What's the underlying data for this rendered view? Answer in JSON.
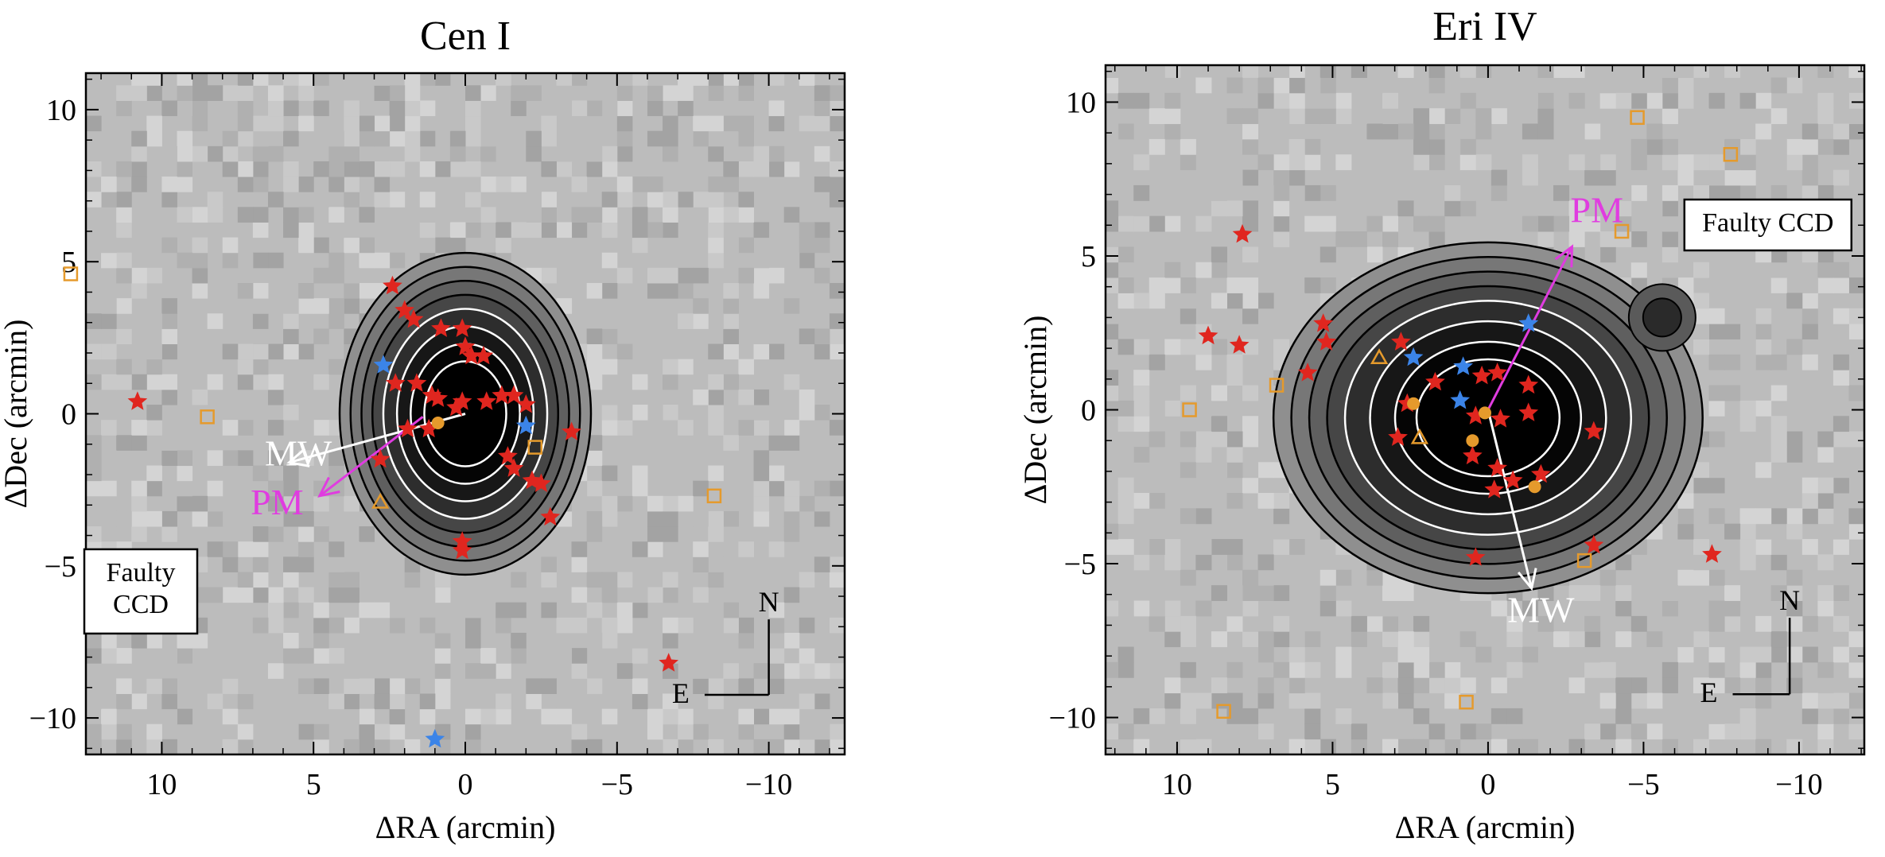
{
  "colors": {
    "red_star": "#e0261f",
    "blue_star": "#3b84e8",
    "orange_marker": "#e59a2c",
    "pm_arrow": "#e03ce0",
    "mw_arrow": "#ffffff",
    "bg_gray": "#bcbcbc"
  },
  "chart_data": [
    {
      "type": "scatter",
      "title": "Cen I",
      "xlabel": "ΔRA (arcmin)",
      "ylabel": "ΔDec (arcmin)",
      "xlim": [
        12.5,
        -12.5
      ],
      "ylim": [
        -11.2,
        11.2
      ],
      "xticks": [
        10,
        5,
        0,
        -5,
        -10
      ],
      "xtick_labels": [
        "10",
        "5",
        "0",
        "−5",
        "−10"
      ],
      "yticks": [
        10,
        5,
        0,
        -5,
        -10
      ],
      "ytick_labels": [
        "10",
        "5",
        "0",
        "−5",
        "−10"
      ],
      "grid": false,
      "background": "density map (grayscale) with black and white contours",
      "overdensity_center": [
        0,
        0
      ],
      "contour_radii": [
        4.6,
        4.2,
        3.8,
        3.4,
        3.0,
        2.5,
        2.0,
        1.5
      ],
      "annotations": [
        {
          "text": "MW",
          "x": 5.5,
          "y": -1.7,
          "color": "#ffffff"
        },
        {
          "text": "PM",
          "x": 6.2,
          "y": -3.3,
          "color": "#e03ce0"
        },
        {
          "text": "Faulty\nCCD",
          "x": 11.8,
          "y": -5.5,
          "boxed": true
        },
        {
          "text": "N",
          "x": -10.0,
          "y": -6.5
        },
        {
          "text": "E",
          "x": -7.1,
          "y": -9.5
        }
      ],
      "vectors": [
        {
          "name": "MW",
          "from": [
            0,
            0
          ],
          "to": [
            5.8,
            -1.6
          ],
          "color": "#ffffff"
        },
        {
          "name": "PM",
          "from": [
            1.4,
            -0.1
          ],
          "to": [
            4.8,
            -2.7
          ],
          "color": "#e03ce0"
        }
      ],
      "compass": {
        "label_north": "N",
        "label_east": "E"
      },
      "series": [
        {
          "marker": "star",
          "color": "#e0261f",
          "points": [
            [
              2.4,
              4.2
            ],
            [
              2.0,
              3.4
            ],
            [
              1.7,
              3.1
            ],
            [
              0.8,
              2.8
            ],
            [
              0.1,
              2.8
            ],
            [
              0.0,
              2.2
            ],
            [
              -0.2,
              1.9
            ],
            [
              -0.6,
              1.9
            ],
            [
              2.3,
              1.0
            ],
            [
              1.6,
              1.0
            ],
            [
              1.1,
              0.6
            ],
            [
              0.9,
              0.5
            ],
            [
              0.3,
              0.2
            ],
            [
              0.1,
              0.4
            ],
            [
              -0.7,
              0.4
            ],
            [
              -1.2,
              0.6
            ],
            [
              -1.6,
              0.6
            ],
            [
              -2.0,
              0.3
            ],
            [
              1.2,
              -0.5
            ],
            [
              1.9,
              -0.5
            ],
            [
              2.8,
              -1.5
            ],
            [
              -1.4,
              -1.4
            ],
            [
              -1.6,
              -1.8
            ],
            [
              -2.2,
              -2.2
            ],
            [
              -2.5,
              -2.3
            ],
            [
              -2.8,
              -3.4
            ],
            [
              0.1,
              -4.2
            ],
            [
              0.1,
              -4.5
            ],
            [
              -3.5,
              -0.6
            ],
            [
              10.8,
              0.4
            ],
            [
              -6.7,
              -8.2
            ]
          ]
        },
        {
          "marker": "star",
          "color": "#3b84e8",
          "points": [
            [
              2.7,
              1.6
            ],
            [
              -2.0,
              -0.4
            ],
            [
              1.0,
              -10.7
            ]
          ]
        },
        {
          "marker": "circle",
          "color": "#e59a2c",
          "points": [
            [
              0.9,
              -0.3
            ]
          ]
        },
        {
          "marker": "open-square",
          "color": "#e59a2c",
          "points": [
            [
              13.0,
              4.6
            ],
            [
              8.5,
              -0.1
            ],
            [
              -2.3,
              -1.1
            ],
            [
              -8.2,
              -2.7
            ]
          ]
        },
        {
          "marker": "open-triangle",
          "color": "#e59a2c",
          "points": [
            [
              2.8,
              -2.9
            ]
          ]
        }
      ]
    },
    {
      "type": "scatter",
      "title": "Eri IV",
      "xlabel": "ΔRA (arcmin)",
      "ylabel": "ΔDec (arcmin)",
      "xlim": [
        12.3,
        -12.1
      ],
      "ylim": [
        -11.2,
        11.2
      ],
      "xticks": [
        10,
        5,
        0,
        -5,
        -10
      ],
      "xtick_labels": [
        "10",
        "5",
        "0",
        "−5",
        "−10"
      ],
      "yticks": [
        10,
        5,
        0,
        -5,
        -10
      ],
      "ytick_labels": [
        "10",
        "5",
        "0",
        "−5",
        "−10"
      ],
      "grid": false,
      "background": "density map (grayscale) with black and white contours",
      "overdensity_center": [
        0,
        0
      ],
      "annotations": [
        {
          "text": "MW",
          "x": -1.7,
          "y": -6.9,
          "color": "#ffffff"
        },
        {
          "text": "PM",
          "x": -3.5,
          "y": 6.1,
          "color": "#e03ce0"
        },
        {
          "text": "Faulty CCD",
          "x": -9.0,
          "y": 5.8,
          "boxed": true
        },
        {
          "text": "N",
          "x": -9.7,
          "y": -6.5
        },
        {
          "text": "E",
          "x": -7.1,
          "y": -9.5
        }
      ],
      "vectors": [
        {
          "name": "MW",
          "from": [
            0,
            0
          ],
          "to": [
            -1.4,
            -5.8
          ],
          "color": "#ffffff"
        },
        {
          "name": "PM",
          "from": [
            0,
            0
          ],
          "to": [
            -2.7,
            5.3
          ],
          "color": "#e03ce0"
        }
      ],
      "compass": {
        "label_north": "N",
        "label_east": "E"
      },
      "series": [
        {
          "marker": "star",
          "color": "#e0261f",
          "points": [
            [
              7.9,
              5.7
            ],
            [
              9.0,
              2.4
            ],
            [
              8.0,
              2.1
            ],
            [
              5.3,
              2.8
            ],
            [
              5.2,
              2.2
            ],
            [
              5.8,
              1.2
            ],
            [
              2.8,
              2.2
            ],
            [
              2.9,
              -0.9
            ],
            [
              2.6,
              0.2
            ],
            [
              1.7,
              0.9
            ],
            [
              0.2,
              1.1
            ],
            [
              -0.3,
              1.2
            ],
            [
              -1.3,
              0.8
            ],
            [
              0.4,
              -0.2
            ],
            [
              -0.4,
              -0.3
            ],
            [
              -1.3,
              -0.1
            ],
            [
              0.5,
              -1.5
            ],
            [
              -0.3,
              -1.9
            ],
            [
              -0.8,
              -2.3
            ],
            [
              -1.7,
              -2.1
            ],
            [
              -0.2,
              -2.6
            ],
            [
              -3.4,
              -0.7
            ],
            [
              -3.4,
              -4.4
            ],
            [
              -7.2,
              -4.7
            ],
            [
              0.4,
              -4.8
            ]
          ]
        },
        {
          "marker": "star",
          "color": "#3b84e8",
          "points": [
            [
              -1.3,
              2.8
            ],
            [
              2.4,
              1.7
            ],
            [
              0.8,
              1.4
            ],
            [
              0.9,
              0.3
            ]
          ]
        },
        {
          "marker": "circle",
          "color": "#e59a2c",
          "points": [
            [
              2.4,
              0.2
            ],
            [
              0.1,
              -0.1
            ],
            [
              -1.5,
              -2.5
            ],
            [
              0.5,
              -1.0
            ]
          ]
        },
        {
          "marker": "open-square",
          "color": "#e59a2c",
          "points": [
            [
              -4.8,
              9.5
            ],
            [
              -7.8,
              8.3
            ],
            [
              -4.3,
              5.8
            ],
            [
              6.8,
              0.8
            ],
            [
              9.6,
              0.0
            ],
            [
              -3.1,
              -4.9
            ],
            [
              8.5,
              -9.8
            ],
            [
              0.7,
              -9.5
            ]
          ]
        },
        {
          "marker": "open-triangle",
          "color": "#e59a2c",
          "points": [
            [
              3.5,
              1.7
            ],
            [
              2.2,
              -0.9
            ]
          ]
        }
      ]
    }
  ]
}
